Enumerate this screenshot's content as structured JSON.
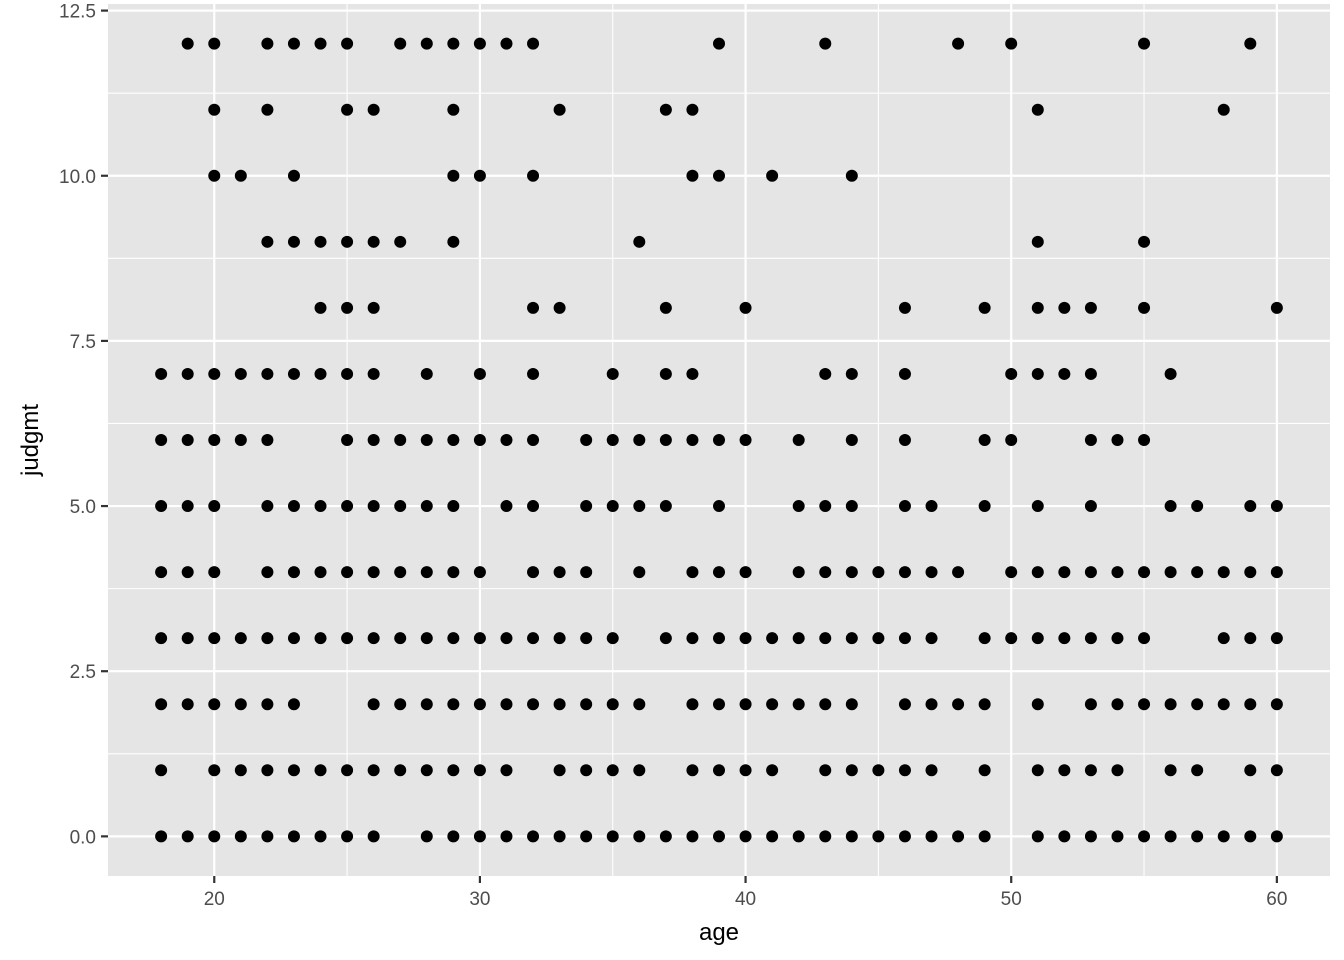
{
  "chart_data": {
    "type": "scatter",
    "xlabel": "age",
    "ylabel": "judgmt",
    "xlim": [
      16,
      62
    ],
    "ylim": [
      -0.6,
      12.6
    ],
    "x_ticks": [
      20,
      30,
      40,
      50,
      60
    ],
    "x_tick_labels": [
      "20",
      "30",
      "40",
      "50",
      "60"
    ],
    "y_ticks": [
      0,
      2.5,
      5,
      7.5,
      10,
      12.5
    ],
    "y_tick_labels": [
      "0.0",
      "2.5",
      "5.0",
      "7.5",
      "10.0",
      "12.5"
    ],
    "grid": true,
    "colors": {
      "panel": "#e5e5e5",
      "grid": "#ffffff",
      "point": "#000000"
    },
    "points_by_y": [
      {
        "y": 12,
        "x": [
          19,
          20,
          22,
          23,
          24,
          25,
          27,
          28,
          29,
          30,
          31,
          32,
          39,
          43,
          48,
          50,
          55,
          59
        ]
      },
      {
        "y": 11,
        "x": [
          20,
          22,
          25,
          26,
          29,
          33,
          37,
          38,
          51,
          58
        ]
      },
      {
        "y": 10,
        "x": [
          20,
          21,
          23,
          29,
          30,
          32,
          38,
          39,
          41,
          44
        ]
      },
      {
        "y": 9,
        "x": [
          22,
          23,
          24,
          25,
          26,
          27,
          29,
          36,
          51,
          55
        ]
      },
      {
        "y": 8,
        "x": [
          24,
          25,
          26,
          32,
          33,
          37,
          40,
          46,
          49,
          51,
          52,
          53,
          55,
          60
        ]
      },
      {
        "y": 7,
        "x": [
          18,
          19,
          20,
          21,
          22,
          23,
          24,
          25,
          26,
          28,
          30,
          32,
          35,
          37,
          38,
          43,
          44,
          46,
          50,
          51,
          52,
          53,
          56
        ]
      },
      {
        "y": 6,
        "x": [
          18,
          19,
          20,
          21,
          22,
          25,
          26,
          27,
          28,
          29,
          30,
          31,
          32,
          34,
          35,
          36,
          37,
          38,
          39,
          40,
          42,
          44,
          46,
          49,
          50,
          53,
          54,
          55
        ]
      },
      {
        "y": 5,
        "x": [
          18,
          19,
          20,
          22,
          23,
          24,
          25,
          26,
          27,
          28,
          29,
          31,
          32,
          34,
          35,
          36,
          37,
          39,
          42,
          43,
          44,
          46,
          47,
          49,
          51,
          53,
          56,
          57,
          59,
          60
        ]
      },
      {
        "y": 4,
        "x": [
          18,
          19,
          20,
          22,
          23,
          24,
          25,
          26,
          27,
          28,
          29,
          30,
          32,
          33,
          34,
          36,
          38,
          39,
          40,
          42,
          43,
          44,
          45,
          46,
          47,
          48,
          50,
          51,
          52,
          53,
          54,
          55,
          56,
          57,
          58,
          59,
          60
        ]
      },
      {
        "y": 3,
        "x": [
          18,
          19,
          20,
          21,
          22,
          23,
          24,
          25,
          26,
          27,
          28,
          29,
          30,
          31,
          32,
          33,
          34,
          35,
          37,
          38,
          39,
          40,
          41,
          42,
          43,
          44,
          45,
          46,
          47,
          49,
          50,
          51,
          52,
          53,
          54,
          55,
          58,
          59,
          60
        ]
      },
      {
        "y": 2,
        "x": [
          18,
          19,
          20,
          21,
          22,
          23,
          26,
          27,
          28,
          29,
          30,
          31,
          32,
          33,
          34,
          35,
          36,
          38,
          39,
          40,
          41,
          42,
          43,
          44,
          46,
          47,
          48,
          49,
          51,
          53,
          54,
          55,
          56,
          57,
          58,
          59,
          60
        ]
      },
      {
        "y": 1,
        "x": [
          18,
          20,
          21,
          22,
          23,
          24,
          25,
          26,
          27,
          28,
          29,
          30,
          31,
          33,
          34,
          35,
          36,
          38,
          39,
          40,
          41,
          43,
          44,
          45,
          46,
          47,
          49,
          51,
          52,
          53,
          54,
          56,
          57,
          59,
          60
        ]
      },
      {
        "y": 0,
        "x": [
          18,
          19,
          20,
          21,
          22,
          23,
          24,
          25,
          26,
          28,
          29,
          30,
          31,
          32,
          33,
          34,
          35,
          36,
          37,
          38,
          39,
          40,
          41,
          42,
          43,
          44,
          45,
          46,
          47,
          48,
          49,
          51,
          52,
          53,
          54,
          55,
          56,
          57,
          58,
          59,
          60
        ]
      }
    ]
  }
}
